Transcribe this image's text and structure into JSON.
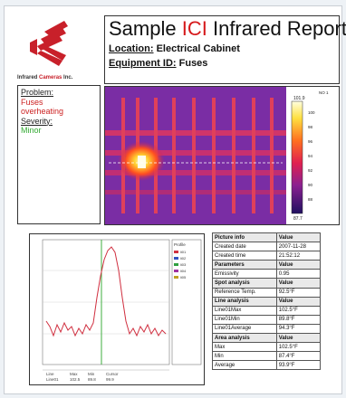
{
  "company": {
    "logo_word1": "Infrared",
    "logo_word2": "Cameras",
    "logo_word3": "Inc."
  },
  "report": {
    "title_before": "Sample",
    "title_accent": "ICI",
    "title_after": "Infrared Report",
    "location_label": "Location:",
    "location_value": "Electrical Cabinet",
    "equipment_label": "Equipment ID:",
    "equipment_value": "Fuses"
  },
  "problem": {
    "problem_label": "Problem:",
    "problem_line1": "Fuses",
    "problem_line2": "overheating",
    "severity_label": "Severity:",
    "severity_value": "Minor"
  },
  "thermal": {
    "corner_label": "NO 1",
    "scale_max": "101.9",
    "scale_min": "87.7",
    "scale_ticks": [
      "100",
      "98",
      "96",
      "94",
      "92",
      "90",
      "88"
    ]
  },
  "graph": {
    "legend_title": "Profile",
    "legend_items": [
      "li01",
      "li02",
      "li03",
      "li04",
      "li05"
    ],
    "footer_row1": [
      "Line",
      "Max",
      "Min",
      "Cursor"
    ],
    "footer_row2": [
      "Line01",
      "102.5",
      "89.8",
      "99.9"
    ]
  },
  "table": {
    "rows": [
      {
        "label": "Picture info",
        "value": "Value",
        "header": true
      },
      {
        "label": "Created date",
        "value": "2007-11-28",
        "header": false
      },
      {
        "label": "Created time",
        "value": "21:52:12",
        "header": false
      },
      {
        "label": "Parameters",
        "value": "Value",
        "header": true
      },
      {
        "label": "Emissivity",
        "value": "0.95",
        "header": false
      },
      {
        "label": "Spot analysis",
        "value": "Value",
        "header": true
      },
      {
        "label": "Reference Temp.",
        "value": "92.5°F",
        "header": false
      },
      {
        "label": "Line analysis",
        "value": "Value",
        "header": true
      },
      {
        "label": "Line01Max",
        "value": "102.5°F",
        "header": false
      },
      {
        "label": "Line01Min",
        "value": "89.8°F",
        "header": false
      },
      {
        "label": "Line01Average",
        "value": "94.3°F",
        "header": false
      },
      {
        "label": "Area analysis",
        "value": "Value",
        "header": true
      },
      {
        "label": "Max",
        "value": "102.5°F",
        "header": false
      },
      {
        "label": "Min",
        "value": "87.4°F",
        "header": false
      },
      {
        "label": "Average",
        "value": "93.9°F",
        "header": false
      }
    ]
  }
}
